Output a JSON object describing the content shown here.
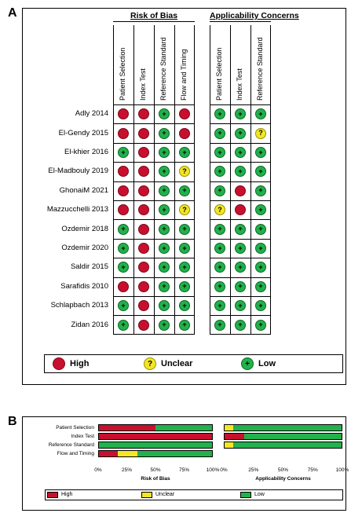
{
  "panel_a": {
    "letter": "A",
    "risk_of_bias_title": "Risk of Bias",
    "applicability_title": "Applicability Concerns",
    "rob_columns": [
      "Patient Selection",
      "Index Test",
      "Reference Standard",
      "Flow and Timing"
    ],
    "app_columns": [
      "Patient Selection",
      "Index Test",
      "Reference Standard"
    ],
    "studies": [
      {
        "name": "Adly 2014",
        "rob": [
          "high",
          "high",
          "low",
          "high"
        ],
        "app": [
          "low",
          "low",
          "low"
        ]
      },
      {
        "name": "El-Gendy 2015",
        "rob": [
          "high",
          "high",
          "low",
          "high"
        ],
        "app": [
          "low",
          "low",
          "unclear"
        ]
      },
      {
        "name": "El-khier 2016",
        "rob": [
          "low",
          "high",
          "low",
          "low"
        ],
        "app": [
          "low",
          "low",
          "low"
        ]
      },
      {
        "name": "El-Madbouly 2019",
        "rob": [
          "high",
          "high",
          "low",
          "unclear"
        ],
        "app": [
          "low",
          "low",
          "low"
        ]
      },
      {
        "name": "GhonaiM 2021",
        "rob": [
          "high",
          "high",
          "low",
          "low"
        ],
        "app": [
          "low",
          "high",
          "low"
        ]
      },
      {
        "name": "Mazzucchelli 2013",
        "rob": [
          "high",
          "high",
          "low",
          "unclear"
        ],
        "app": [
          "unclear",
          "high",
          "low"
        ]
      },
      {
        "name": "Ozdemir 2018",
        "rob": [
          "low",
          "high",
          "low",
          "low"
        ],
        "app": [
          "low",
          "low",
          "low"
        ]
      },
      {
        "name": "Ozdemir 2020",
        "rob": [
          "low",
          "high",
          "low",
          "low"
        ],
        "app": [
          "low",
          "low",
          "low"
        ]
      },
      {
        "name": "Saldir 2015",
        "rob": [
          "low",
          "high",
          "low",
          "low"
        ],
        "app": [
          "low",
          "low",
          "low"
        ]
      },
      {
        "name": "Sarafidis 2010",
        "rob": [
          "high",
          "high",
          "low",
          "low"
        ],
        "app": [
          "low",
          "low",
          "low"
        ]
      },
      {
        "name": "Schlapbach 2013",
        "rob": [
          "low",
          "high",
          "low",
          "low"
        ],
        "app": [
          "low",
          "low",
          "low"
        ]
      },
      {
        "name": "Zidan 2016",
        "rob": [
          "low",
          "high",
          "low",
          "low"
        ],
        "app": [
          "low",
          "low",
          "low"
        ]
      }
    ],
    "symbols": {
      "low": "+",
      "unclear": "?",
      "high": ""
    },
    "legend": {
      "high": "High",
      "unclear": "Unclear",
      "low": "Low",
      "low_symbol": "+",
      "unclear_symbol": "?"
    }
  },
  "panel_b": {
    "letter": "B",
    "chart_data": {
      "type": "bar",
      "orientation": "horizontal-stacked-percent",
      "categories": [
        "Patient Selection",
        "Index Test",
        "Reference Standard",
        "Flow and Timing"
      ],
      "charts": [
        {
          "xlabel": "Risk of Bias",
          "series": [
            {
              "name": "High",
              "values": [
                50,
                100,
                0,
                17
              ]
            },
            {
              "name": "Unclear",
              "values": [
                0,
                0,
                0,
                17
              ]
            },
            {
              "name": "Low",
              "values": [
                50,
                0,
                100,
                66
              ]
            }
          ]
        },
        {
          "xlabel": "Applicability Concerns",
          "series": [
            {
              "name": "High",
              "values": [
                0,
                17,
                0
              ]
            },
            {
              "name": "Unclear",
              "values": [
                8,
                0,
                8
              ]
            },
            {
              "name": "Low",
              "values": [
                92,
                83,
                92
              ]
            }
          ]
        }
      ],
      "xticks": [
        "0%",
        "25%",
        "50%",
        "75%",
        "100%"
      ],
      "xlim": [
        0,
        100
      ],
      "legend": [
        "High",
        "Unclear",
        "Low"
      ]
    }
  },
  "colors": {
    "high": "#c8102e",
    "unclear": "#f2e625",
    "low": "#22b14c"
  }
}
